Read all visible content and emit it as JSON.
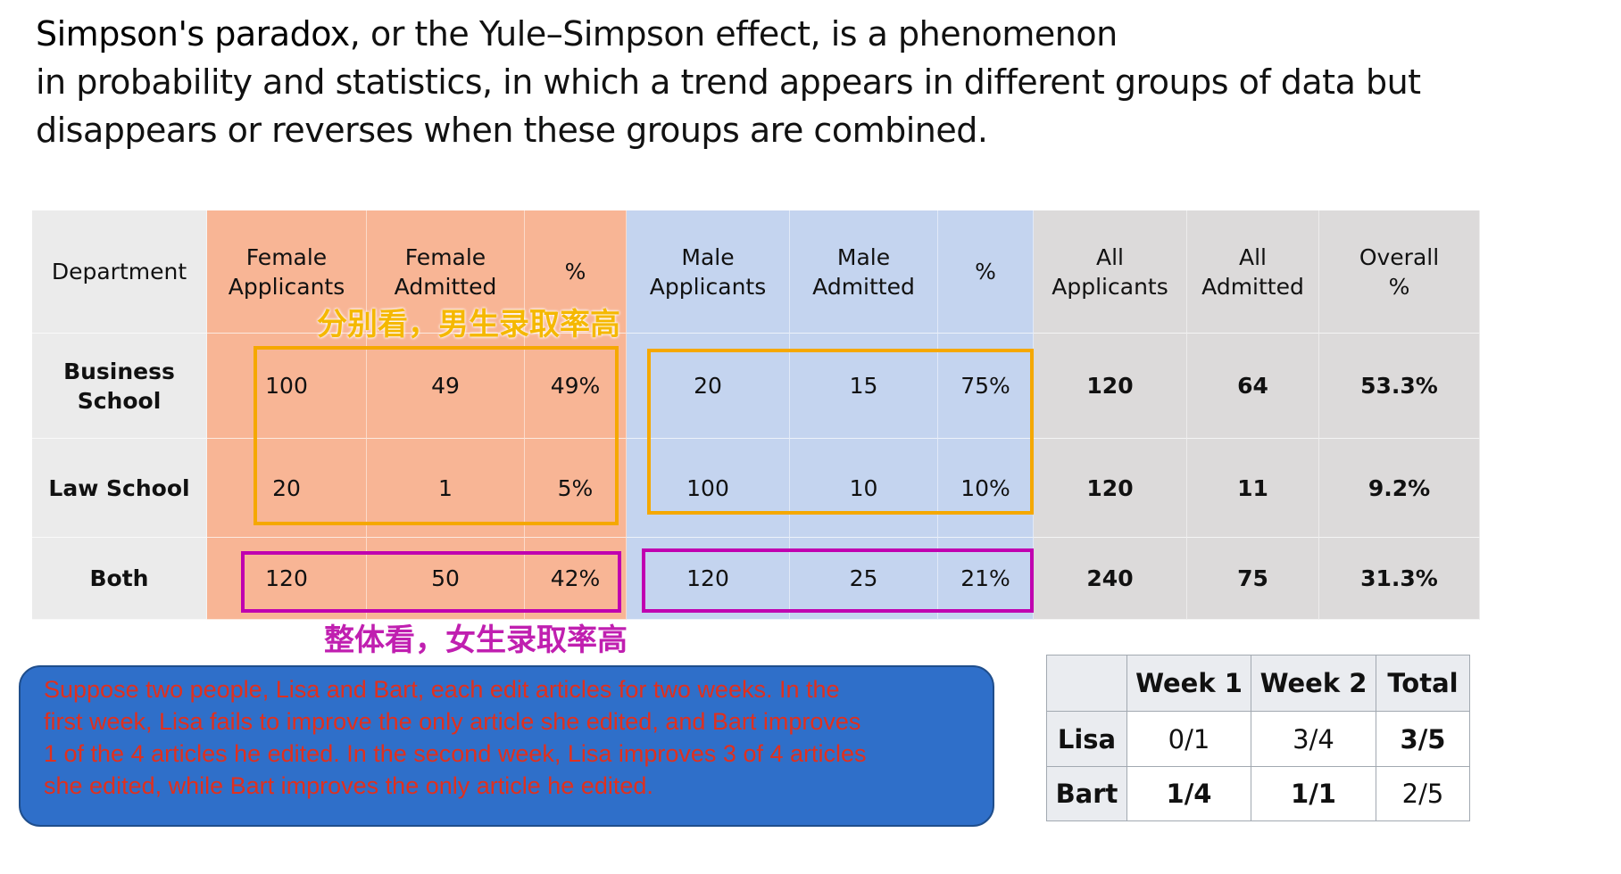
{
  "intro": {
    "term": "Simpson's paradox",
    "lines": [
      ", or the Yule–Simpson effect, is a phenomenon",
      "in probability and statistics, in which a trend appears in different groups of data but",
      "disappears or reverses when these groups are combined."
    ]
  },
  "table": {
    "header": [
      [
        "Department"
      ],
      [
        "Female",
        "Applicants"
      ],
      [
        "Female",
        "Admitted"
      ],
      [
        "%"
      ],
      [
        "Male",
        "Applicants"
      ],
      [
        "Male",
        "Admitted"
      ],
      [
        "%"
      ],
      [
        "All",
        "Applicants"
      ],
      [
        "All",
        "Admitted"
      ],
      [
        "Overall",
        "%"
      ]
    ],
    "rows": [
      [
        [
          "Business",
          "School"
        ],
        [
          "100"
        ],
        [
          "49"
        ],
        [
          "49%"
        ],
        [
          "20"
        ],
        [
          "15"
        ],
        [
          "75%"
        ],
        [
          "120"
        ],
        [
          "64"
        ],
        [
          "53.3%"
        ]
      ],
      [
        [
          "Law School"
        ],
        [
          "20"
        ],
        [
          "1"
        ],
        [
          "5%"
        ],
        [
          "100"
        ],
        [
          "10"
        ],
        [
          "10%"
        ],
        [
          "120"
        ],
        [
          "11"
        ],
        [
          "9.2%"
        ]
      ],
      [
        [
          "Both"
        ],
        [
          "120"
        ],
        [
          "50"
        ],
        [
          "42%"
        ],
        [
          "120"
        ],
        [
          "25"
        ],
        [
          "21%"
        ],
        [
          "240"
        ],
        [
          "75"
        ],
        [
          "31.3%"
        ]
      ]
    ]
  },
  "annotations": {
    "separate": "分别看，男生录取率高",
    "combined": "整体看，女生录取率高"
  },
  "example": {
    "lines": [
      "Suppose two people, Lisa and Bart, each edit articles for two weeks. In the",
      "first week, Lisa fails to improve the only article she edited, and Bart improves",
      "1 of the 4 articles he edited. In the second week, Lisa improves 3 of 4 articles",
      "she edited, while Bart improves the only article he edited."
    ]
  },
  "weeks": {
    "header": [
      "Week 1",
      "Week 2",
      "Total"
    ],
    "rows": [
      {
        "label": "Lisa",
        "cells": [
          "0/1",
          "3/4",
          "3/5"
        ]
      },
      {
        "label": "Bart",
        "cells": [
          "1/4",
          "1/1",
          "2/5"
        ]
      }
    ]
  }
}
